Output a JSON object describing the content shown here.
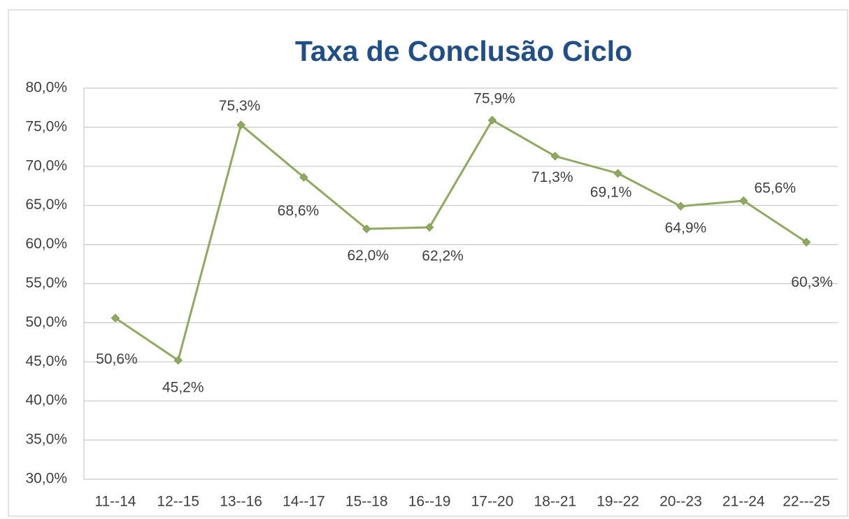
{
  "chart_data": {
    "type": "line",
    "title": "Taxa de Conclusão Ciclo",
    "categories": [
      "11--14",
      "12--15",
      "13--16",
      "14--17",
      "15--18",
      "16--19",
      "17--20",
      "18--21",
      "19--22",
      "20--23",
      "21--24",
      "22---25"
    ],
    "series": [
      {
        "color": "#8fa95f",
        "values": [
          50.6,
          45.2,
          75.3,
          68.6,
          62.0,
          62.2,
          75.9,
          71.3,
          69.1,
          64.9,
          65.6,
          60.3
        ],
        "value_labels": [
          "50,6%",
          "45,2%",
          "75,3%",
          "68,6%",
          "62,0%",
          "62,2%",
          "75,9%",
          "71,3%",
          "69,1%",
          "64,9%",
          "65,6%",
          "60,3%"
        ]
      }
    ],
    "ylim": [
      30,
      80
    ],
    "yticks": [
      {
        "value": 30,
        "label": "30,0%"
      },
      {
        "value": 35,
        "label": "35,0%"
      },
      {
        "value": 40,
        "label": "40,0%"
      },
      {
        "value": 45,
        "label": "45,0%"
      },
      {
        "value": 50,
        "label": "50,0%"
      },
      {
        "value": 55,
        "label": "55,0%"
      },
      {
        "value": 60,
        "label": "60,0%"
      },
      {
        "value": 65,
        "label": "65,0%"
      },
      {
        "value": 70,
        "label": "70,0%"
      },
      {
        "value": 75,
        "label": "75,0%"
      },
      {
        "value": 80,
        "label": "80,0%"
      }
    ],
    "grid": true
  }
}
